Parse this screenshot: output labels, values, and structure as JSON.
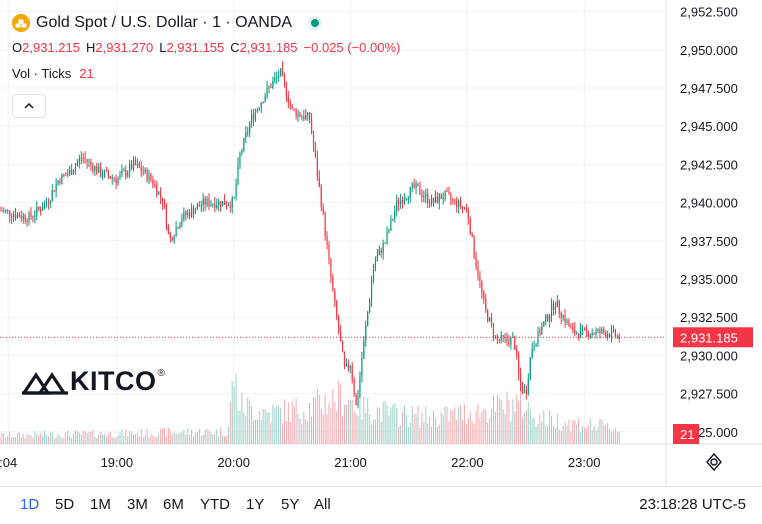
{
  "header": {
    "title": "Gold Spot / U.S. Dollar · 1 · OANDA",
    "ohlc": [
      {
        "label": "O",
        "value": "2,931.215"
      },
      {
        "label": "H",
        "value": "2,931.270"
      },
      {
        "label": "L",
        "value": "2,931.155"
      },
      {
        "label": "C",
        "value": "2,931.185"
      },
      {
        "label": "",
        "value": "−0.025 (−0.00%)"
      }
    ],
    "volume_label": "Vol · Ticks",
    "volume_value": "21"
  },
  "watermark": {
    "brand": "KITCO",
    "mark": "®"
  },
  "time_ranges": [
    "1D",
    "5D",
    "1M",
    "3M",
    "6M",
    "YTD",
    "1Y",
    "5Y",
    "All"
  ],
  "active_range": "1D",
  "clock": "23:18:28 UTC-5",
  "colors": {
    "up": "#089981",
    "down": "#f23645",
    "up_volume": "#9bd1c7",
    "down_volume": "#f4a8ae",
    "grid": "#f0f3fa",
    "accent": "#2962ff"
  },
  "chart_data": {
    "type": "candlestick",
    "instrument": "Gold Spot / U.S. Dollar",
    "interval": "1",
    "y_ticks": [
      "2,925.000",
      "2,927.500",
      "2,930.000",
      "2,932.500",
      "2,935.000",
      "2,937.500",
      "2,940.000",
      "2,942.500",
      "2,945.000",
      "2,947.500",
      "2,950.000",
      "2,952.500"
    ],
    "ylim": [
      2924.2,
      2953.0
    ],
    "x_ticks": [
      ":04",
      "19:00",
      "20:00",
      "21:00",
      "22:00",
      "23:00"
    ],
    "x_tick_times": [
      18.07,
      19.0,
      20.0,
      21.0,
      22.0,
      23.0
    ],
    "xlim": [
      18.0,
      23.7
    ],
    "last_price": "2,931.185",
    "last_price_value": 2931.185,
    "last_volume": "21",
    "price_path": [
      [
        18.0,
        2939.5
      ],
      [
        18.25,
        2939.0
      ],
      [
        18.4,
        2940.0
      ],
      [
        18.5,
        2941.5
      ],
      [
        18.6,
        2942.0
      ],
      [
        18.7,
        2943.0
      ],
      [
        18.85,
        2942.0
      ],
      [
        19.0,
        2941.5
      ],
      [
        19.15,
        2942.5
      ],
      [
        19.3,
        2941.5
      ],
      [
        19.4,
        2940.0
      ],
      [
        19.45,
        2937.5
      ],
      [
        19.55,
        2939.0
      ],
      [
        19.65,
        2939.5
      ],
      [
        19.75,
        2940.0
      ],
      [
        19.9,
        2940.0
      ],
      [
        20.0,
        2940.0
      ],
      [
        20.05,
        2943.0
      ],
      [
        20.15,
        2945.5
      ],
      [
        20.3,
        2947.5
      ],
      [
        20.4,
        2948.5
      ],
      [
        20.5,
        2946.0
      ],
      [
        20.65,
        2945.5
      ],
      [
        20.75,
        2940.0
      ],
      [
        20.85,
        2934.0
      ],
      [
        20.95,
        2929.0
      ],
      [
        21.0,
        2929.5
      ],
      [
        21.05,
        2926.5
      ],
      [
        21.1,
        2930.0
      ],
      [
        21.2,
        2936.0
      ],
      [
        21.3,
        2937.5
      ],
      [
        21.4,
        2940.0
      ],
      [
        21.55,
        2941.0
      ],
      [
        21.7,
        2940.0
      ],
      [
        21.8,
        2940.5
      ],
      [
        21.9,
        2940.0
      ],
      [
        22.0,
        2939.5
      ],
      [
        22.05,
        2937.0
      ],
      [
        22.15,
        2933.0
      ],
      [
        22.25,
        2931.0
      ],
      [
        22.4,
        2931.0
      ],
      [
        22.45,
        2928.0
      ],
      [
        22.5,
        2927.5
      ],
      [
        22.55,
        2930.5
      ],
      [
        22.65,
        2932.0
      ],
      [
        22.75,
        2933.5
      ],
      [
        22.9,
        2931.5
      ],
      [
        23.05,
        2931.5
      ],
      [
        23.2,
        2931.5
      ],
      [
        23.3,
        2931.2
      ]
    ],
    "volume_note": "tick volume bars beneath price, scale 0–150 ticks",
    "volume_profile": [
      [
        18.0,
        12
      ],
      [
        18.5,
        14
      ],
      [
        19.0,
        15
      ],
      [
        19.5,
        17
      ],
      [
        19.95,
        18
      ],
      [
        20.0,
        100
      ],
      [
        20.05,
        55
      ],
      [
        20.3,
        45
      ],
      [
        20.6,
        50
      ],
      [
        20.8,
        62
      ],
      [
        20.95,
        68
      ],
      [
        21.1,
        52
      ],
      [
        21.4,
        42
      ],
      [
        21.7,
        38
      ],
      [
        22.0,
        45
      ],
      [
        22.2,
        50
      ],
      [
        22.45,
        60
      ],
      [
        22.6,
        38
      ],
      [
        22.9,
        30
      ],
      [
        23.2,
        24
      ],
      [
        23.3,
        21
      ]
    ]
  }
}
